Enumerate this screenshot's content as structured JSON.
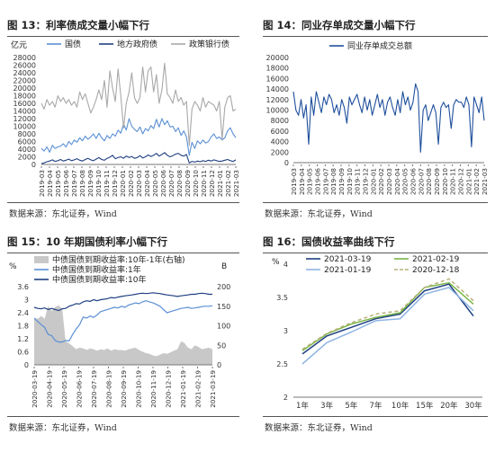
{
  "figures": [
    {
      "title": "图 13：利率债成交量小幅下行",
      "source": "数据来源：东北证券，Wind",
      "chart_data": {
        "type": "line",
        "unit_label": "亿元",
        "ylim": [
          0,
          28000
        ],
        "yticks": [
          0,
          2000,
          4000,
          6000,
          8000,
          10000,
          12000,
          14000,
          16000,
          18000,
          20000,
          22000,
          24000,
          26000,
          28000
        ],
        "xticks": [
          "2019-03",
          "2019-04",
          "2019-05",
          "2019-06",
          "2019-07",
          "2019-08",
          "2019-09",
          "2019-10",
          "2019-11",
          "2019-12",
          "2020-01",
          "2020-02",
          "2020-03",
          "2020-04",
          "2020-05",
          "2020-06",
          "2020-07",
          "2020-08",
          "2020-09",
          "2020-10",
          "2020-11",
          "2020-12",
          "2021-01",
          "2021-02",
          "2021-03"
        ],
        "legend_position": "top",
        "series": [
          {
            "name": "国债",
            "color": "#5b8fd4",
            "values": [
              4200,
              3500,
              4600,
              3200,
              5000,
              4200,
              4600,
              4800,
              5400,
              4600,
              6000,
              5200,
              6400,
              5800,
              7000,
              6200,
              7400,
              6600,
              7200,
              8000,
              6800,
              8200,
              7000,
              6200,
              7600,
              6800,
              8000,
              7400,
              9000,
              8200,
              10600,
              9000,
              12000,
              10000,
              9200,
              8600,
              9800,
              8000,
              9400,
              8800,
              10200,
              9400,
              11800,
              9800,
              12000,
              10400,
              11400,
              9800,
              10000,
              8600,
              9600,
              7600,
              8800,
              7200,
              2400,
              5800,
              4200,
              6200,
              5400,
              6400,
              5600,
              6000,
              7200,
              8000,
              6800,
              7200,
              6400,
              7000,
              8800,
              9600,
              8000,
              7000
            ]
          },
          {
            "name": "地方政府债",
            "color": "#1f3f82",
            "values": [
              200,
              400,
              700,
              900,
              1200,
              800,
              1000,
              1300,
              900,
              1100,
              1400,
              1000,
              1200,
              1500,
              1100,
              900,
              1300,
              1600,
              1200,
              1000,
              1400,
              1800,
              1300,
              1100,
              1600,
              1900,
              2400,
              1500,
              1800,
              2000,
              1600,
              2200,
              1800,
              2100,
              1600,
              1800,
              2300,
              1700,
              2000,
              2500,
              2100,
              2400,
              2900,
              2200,
              2600,
              3100,
              2400,
              2000,
              2300,
              2700,
              2900,
              2400,
              2200,
              2600,
              400,
              800,
              600,
              900,
              700,
              1000,
              800,
              1100,
              900,
              1200,
              1000,
              800,
              900,
              1100,
              1300,
              1000,
              800,
              1200
            ]
          },
          {
            "name": "政策银行债",
            "color": "#a8a8a8",
            "values": [
              16000,
              14500,
              17000,
              15500,
              16500,
              15000,
              18000,
              16500,
              17500,
              16000,
              17000,
              15500,
              16500,
              15000,
              19000,
              17000,
              18500,
              16000,
              13500,
              15000,
              17000,
              19500,
              17000,
              22000,
              15000,
              24500,
              20000,
              16500,
              25000,
              18000,
              9500,
              16000,
              19000,
              24000,
              17500,
              16000,
              17500,
              25500,
              19000,
              24500,
              25500,
              19000,
              23500,
              16000,
              19500,
              26500,
              18500,
              17500,
              16000,
              19500,
              16500,
              17500,
              15500,
              16500,
              5000,
              14500,
              16500,
              15500,
              14000,
              17500,
              15000,
              16500,
              16000,
              15500,
              14000,
              16500,
              6500,
              15000,
              17500,
              18000,
              14000,
              14500
            ]
          }
        ]
      }
    },
    {
      "title": "图 14：同业存单成交量小幅下行",
      "source": "数据来源：东北证券，Wind",
      "chart_data": {
        "type": "line",
        "ylim": [
          0,
          20000
        ],
        "yticks": [
          0,
          2000,
          4000,
          6000,
          8000,
          10000,
          12000,
          14000,
          16000,
          18000,
          20000
        ],
        "xticks": [
          "2019-03",
          "2019-04",
          "2019-05",
          "2019-06",
          "2019-07",
          "2019-08",
          "2019-09",
          "2019-10",
          "2019-11",
          "2019-12",
          "2020-01",
          "2020-02",
          "2020-03",
          "2020-04",
          "2020-05",
          "2020-06",
          "2020-07",
          "2020-08",
          "2020-09",
          "2020-10",
          "2020-11",
          "2020-12",
          "2021-01",
          "2021-02",
          "2021-03"
        ],
        "legend_position": "top",
        "series": [
          {
            "name": "同业存单成交总额",
            "color": "#1f4f9c",
            "values": [
              13500,
              10000,
              9000,
              12000,
              8500,
              11000,
              3500,
              12500,
              9000,
              13500,
              11500,
              9500,
              12500,
              11000,
              13000,
              12000,
              9500,
              11000,
              9000,
              12000,
              10500,
              7500,
              12500,
              11000,
              12000,
              13000,
              11000,
              9500,
              12500,
              10000,
              12000,
              9000,
              11000,
              13000,
              10500,
              12000,
              9000,
              11500,
              12500,
              10500,
              9000,
              12000,
              9500,
              13500,
              11000,
              12500,
              10000,
              11500,
              15000,
              13500,
              2000,
              10000,
              11000,
              8000,
              9500,
              11000,
              9500,
              3500,
              10500,
              11500,
              10500,
              11000,
              6500,
              11000,
              12000,
              11500,
              11500,
              10500,
              12500,
              11000,
              3000,
              12500,
              11000,
              9500,
              12500,
              8000
            ]
          }
        ]
      }
    },
    {
      "title": "图 15：10 年期国债利率小幅下行",
      "source": "数据来源：东北证券，Wind",
      "chart_data": {
        "type": "line",
        "left_unit": "%",
        "right_unit": "B",
        "ylim": [
          0,
          3.6
        ],
        "yticks": [
          0.0,
          0.6,
          1.2,
          1.8,
          2.4,
          3.0,
          3.6
        ],
        "y2lim": [
          0,
          200
        ],
        "y2ticks": [
          0,
          50,
          100,
          150,
          200
        ],
        "xticks": [
          "2020-03-19",
          "2020-04-19",
          "2020-05-19",
          "2020-06-19",
          "2020-07-19",
          "2020-08-19",
          "2020-09-19",
          "2020-10-19",
          "2020-11-19",
          "2020-12-19",
          "2021-01-19",
          "2021-02-19",
          "2021-03-19"
        ],
        "legend_position": "top",
        "series": [
          {
            "name": "中债国债到期收益率:10年-1年(右轴)",
            "type": "area",
            "axis": "right",
            "color": "#c8c8c8",
            "values": [
              120,
              118,
              125,
              118,
              150,
              138,
              148,
              152,
              144,
              60,
              55,
              48,
              40,
              44,
              42,
              38,
              42,
              40,
              36,
              40,
              38,
              42,
              36,
              40,
              38,
              38,
              36,
              40,
              42,
              44,
              38,
              34,
              30,
              28,
              24,
              22,
              26,
              30,
              28,
              32,
              36,
              40,
              60,
              56,
              44,
              40,
              50,
              46,
              40,
              42,
              44,
              40
            ]
          },
          {
            "name": "中债国债到期收益率:1年",
            "type": "line",
            "axis": "left",
            "color": "#5b8fd4",
            "values": [
              2.15,
              2.0,
              1.85,
              1.72,
              1.4,
              1.35,
              1.12,
              1.05,
              1.05,
              1.12,
              1.1,
              1.4,
              1.65,
              1.85,
              2.2,
              2.15,
              2.25,
              2.18,
              2.3,
              2.45,
              2.5,
              2.55,
              2.6,
              2.65,
              2.62,
              2.7,
              2.65,
              2.75,
              2.8,
              2.85,
              2.82,
              2.9,
              2.95,
              2.9,
              2.85,
              2.78,
              2.7,
              2.55,
              2.4,
              2.45,
              2.5,
              2.55,
              2.6,
              2.62,
              2.65,
              2.6,
              2.62,
              2.65,
              2.68,
              2.7,
              2.7,
              2.72
            ]
          },
          {
            "name": "中债国债到期收益率:10年",
            "type": "line",
            "axis": "left",
            "color": "#1f3f82",
            "values": [
              2.65,
              2.6,
              2.58,
              2.62,
              2.55,
              2.6,
              2.55,
              2.5,
              2.58,
              2.6,
              2.7,
              2.75,
              2.82,
              2.8,
              2.9,
              2.95,
              2.92,
              3.0,
              2.95,
              3.0,
              3.02,
              3.05,
              3.1,
              3.08,
              3.12,
              3.15,
              3.18,
              3.2,
              3.22,
              3.25,
              3.28,
              3.3,
              3.28,
              3.3,
              3.32,
              3.3,
              3.28,
              3.25,
              3.22,
              3.2,
              3.18,
              3.15,
              3.18,
              3.2,
              3.22,
              3.25,
              3.25,
              3.28,
              3.3,
              3.28,
              3.25,
              3.25
            ]
          }
        ]
      }
    },
    {
      "title": "图 16：国债收益率曲线下行",
      "source": "数据来源：东北证券，Wind",
      "chart_data": {
        "type": "line",
        "unit_label": "%",
        "ylim": [
          2.0,
          4.0
        ],
        "yticks": [
          2.0,
          2.5,
          3.0,
          3.5,
          4.0
        ],
        "categories": [
          "1年",
          "3年",
          "5年",
          "7年",
          "10年",
          "15年",
          "20年",
          "30年"
        ],
        "legend_position": "top",
        "series": [
          {
            "name": "2021-03-19",
            "color": "#1f3f82",
            "dashed": false,
            "values": [
              2.65,
              2.92,
              3.05,
              3.18,
              3.25,
              3.6,
              3.7,
              3.22
            ]
          },
          {
            "name": "2021-02-19",
            "color": "#7ab648",
            "dashed": false,
            "values": [
              2.7,
              2.95,
              3.1,
              3.2,
              3.27,
              3.65,
              3.72,
              3.4
            ]
          },
          {
            "name": "2021-01-19",
            "color": "#8fb4e3",
            "dashed": false,
            "values": [
              2.5,
              2.82,
              2.98,
              3.15,
              3.18,
              3.55,
              3.65,
              3.3
            ]
          },
          {
            "name": "2020-12-18",
            "color": "#b8b07a",
            "dashed": true,
            "values": [
              2.72,
              2.96,
              3.12,
              3.25,
              3.3,
              3.65,
              3.78,
              3.45
            ]
          }
        ]
      }
    }
  ]
}
